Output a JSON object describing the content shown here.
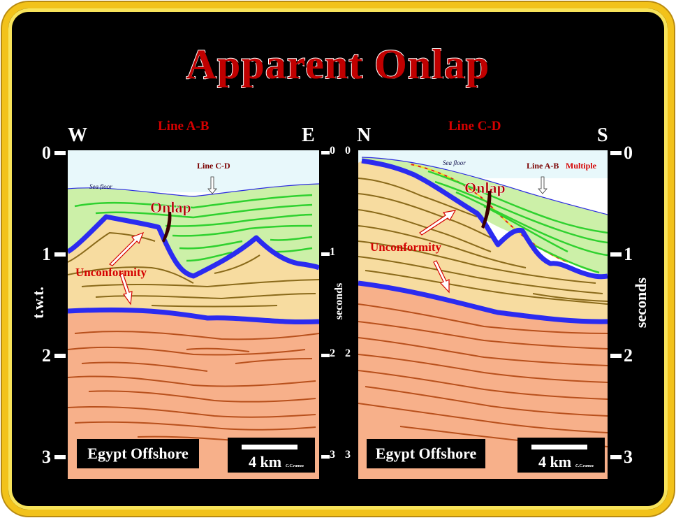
{
  "title": "Apparent Onlap",
  "left_panel": {
    "line_label": "Line A-B",
    "west": "W",
    "east": "E",
    "sea_floor": "Sea floor",
    "cross_line": "Line C-D",
    "onlap": "Onlap",
    "unconformity": "Unconformity",
    "location": "Egypt Offshore",
    "scale": "4 km",
    "credit": "C.C.ramez"
  },
  "right_panel": {
    "line_label": "Line C-D",
    "north": "N",
    "south": "S",
    "sea_floor": "Sea floor",
    "cross_line": "Line A-B",
    "multiple": "Multiple",
    "onlap": "Onlap",
    "unconformity": "Unconformity",
    "location": "Egypt Offshore",
    "scale": "4 km",
    "credit": "C.C.ramez"
  },
  "axes": {
    "left_title": "t.w.t.",
    "right_title": "seconds",
    "ticks": [
      "0",
      "1",
      "2",
      "3"
    ]
  },
  "colors": {
    "frame": "#f2c21a",
    "water": "#e8f8fb",
    "green_unit": "#ccf0a8",
    "green_lines": "#2fd12f",
    "tan_unit": "#f7dca0",
    "tan_lines": "#8a6a1a",
    "salmon_unit": "#f7b08a",
    "salmon_lines": "#b8501c",
    "unconformity": "#2b2bf0",
    "label_red": "#d40000"
  }
}
